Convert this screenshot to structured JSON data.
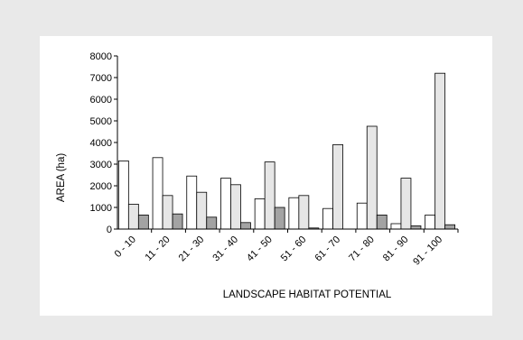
{
  "chart_data": {
    "type": "bar",
    "xlabel": "LANDSCAPE HABITAT POTENTIAL",
    "ylabel": "AREA (ha)",
    "ylim": [
      0,
      8000
    ],
    "yticks": [
      0,
      1000,
      2000,
      3000,
      4000,
      5000,
      6000,
      7000,
      8000
    ],
    "grid": false,
    "categories": [
      "0 - 10",
      "11 - 20",
      "21 - 30",
      "31 - 40",
      "41 - 50",
      "51 - 60",
      "61 - 70",
      "71 - 80",
      "81 - 90",
      "91 - 100"
    ],
    "series": [
      {
        "color": "#ffffff",
        "values": [
          3150,
          3300,
          2450,
          2350,
          1400,
          1450,
          950,
          1200,
          250,
          650
        ]
      },
      {
        "color": "#e6e6e6",
        "values": [
          1150,
          1550,
          1700,
          2050,
          3100,
          1550,
          3900,
          4750,
          2350,
          7200
        ]
      },
      {
        "color": "#a3a3a3",
        "values": [
          650,
          700,
          550,
          300,
          1000,
          50,
          0,
          650,
          150,
          200
        ]
      }
    ]
  }
}
